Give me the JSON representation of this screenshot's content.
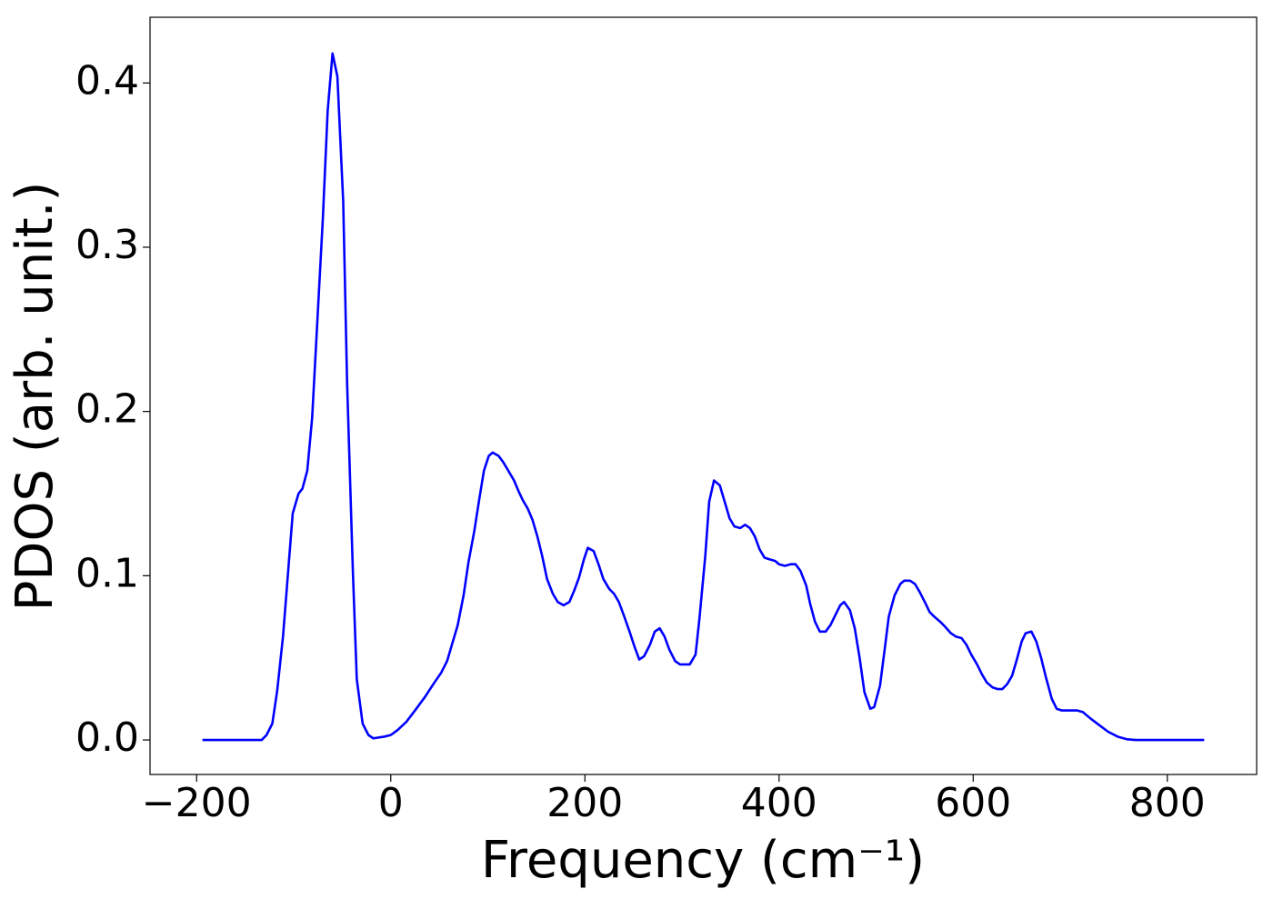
{
  "chart_data": {
    "type": "line",
    "x_label": "Frequency (cm⁻¹)",
    "y_label": "PDOS (arb. unit.)",
    "color": "#0000ff",
    "xlim": [
      -248,
      892
    ],
    "ylim": [
      -0.021,
      0.44
    ],
    "xticks": [
      {
        "value": -200,
        "label": "−200"
      },
      0,
      200,
      400,
      600,
      800
    ],
    "yticks": [
      {
        "value": 0,
        "label": "0.0"
      },
      0.1,
      0.2,
      0.3,
      0.4
    ],
    "x": [
      -194,
      -133,
      -128,
      -122,
      -117,
      -111,
      -105,
      -101,
      -95,
      -91,
      -86,
      -81,
      -76,
      -70,
      -65,
      -60,
      -55,
      -49,
      -45,
      -39,
      -35,
      -29,
      -23,
      -18,
      -7,
      0,
      7,
      16,
      25,
      35,
      45,
      52,
      58,
      63,
      69,
      75,
      80,
      86,
      91,
      96,
      101,
      105,
      111,
      116,
      121,
      127,
      132,
      136,
      141,
      146,
      151,
      156,
      161,
      167,
      172,
      178,
      184,
      189,
      194,
      199,
      203,
      209,
      214,
      219,
      225,
      230,
      235,
      240,
      246,
      251,
      256,
      261,
      267,
      272,
      277,
      282,
      287,
      293,
      298,
      303,
      308,
      314,
      318,
      324,
      328,
      333,
      339,
      344,
      349,
      354,
      360,
      365,
      370,
      375,
      380,
      385,
      390,
      396,
      400,
      406,
      412,
      417,
      422,
      428,
      432,
      437,
      442,
      448,
      453,
      458,
      463,
      467,
      473,
      478,
      483,
      488,
      494,
      498,
      504,
      509,
      513,
      519,
      525,
      529,
      535,
      540,
      545,
      551,
      555,
      560,
      566,
      571,
      577,
      582,
      588,
      593,
      598,
      604,
      609,
      614,
      620,
      625,
      630,
      635,
      640,
      645,
      650,
      654,
      660,
      665,
      670,
      675,
      681,
      686,
      691,
      697,
      707,
      713,
      721,
      730,
      739,
      749,
      758,
      767,
      838
    ],
    "values": [
      0,
      0,
      0.003,
      0.01,
      0.03,
      0.063,
      0.108,
      0.138,
      0.15,
      0.153,
      0.164,
      0.196,
      0.251,
      0.317,
      0.383,
      0.418,
      0.404,
      0.328,
      0.218,
      0.102,
      0.037,
      0.01,
      0.003,
      0.001,
      0.002,
      0.003,
      0.006,
      0.011,
      0.018,
      0.026,
      0.035,
      0.041,
      0.048,
      0.058,
      0.07,
      0.088,
      0.108,
      0.127,
      0.146,
      0.164,
      0.173,
      0.175,
      0.173,
      0.169,
      0.164,
      0.158,
      0.151,
      0.146,
      0.141,
      0.134,
      0.124,
      0.112,
      0.098,
      0.089,
      0.084,
      0.082,
      0.084,
      0.091,
      0.099,
      0.11,
      0.117,
      0.115,
      0.107,
      0.098,
      0.092,
      0.089,
      0.084,
      0.076,
      0.066,
      0.057,
      0.049,
      0.051,
      0.058,
      0.066,
      0.068,
      0.063,
      0.055,
      0.048,
      0.046,
      0.046,
      0.046,
      0.052,
      0.074,
      0.112,
      0.145,
      0.158,
      0.155,
      0.145,
      0.135,
      0.13,
      0.129,
      0.131,
      0.129,
      0.124,
      0.116,
      0.111,
      0.11,
      0.109,
      0.107,
      0.106,
      0.107,
      0.107,
      0.103,
      0.094,
      0.083,
      0.072,
      0.066,
      0.066,
      0.07,
      0.076,
      0.082,
      0.084,
      0.079,
      0.068,
      0.05,
      0.029,
      0.019,
      0.02,
      0.033,
      0.056,
      0.075,
      0.088,
      0.095,
      0.097,
      0.097,
      0.095,
      0.09,
      0.083,
      0.078,
      0.075,
      0.072,
      0.069,
      0.065,
      0.063,
      0.062,
      0.058,
      0.052,
      0.046,
      0.04,
      0.035,
      0.032,
      0.031,
      0.031,
      0.034,
      0.039,
      0.049,
      0.06,
      0.065,
      0.066,
      0.06,
      0.05,
      0.038,
      0.025,
      0.019,
      0.018,
      0.018,
      0.018,
      0.017,
      0.013,
      0.009,
      0.005,
      0.002,
      0.0005,
      0,
      0
    ]
  }
}
